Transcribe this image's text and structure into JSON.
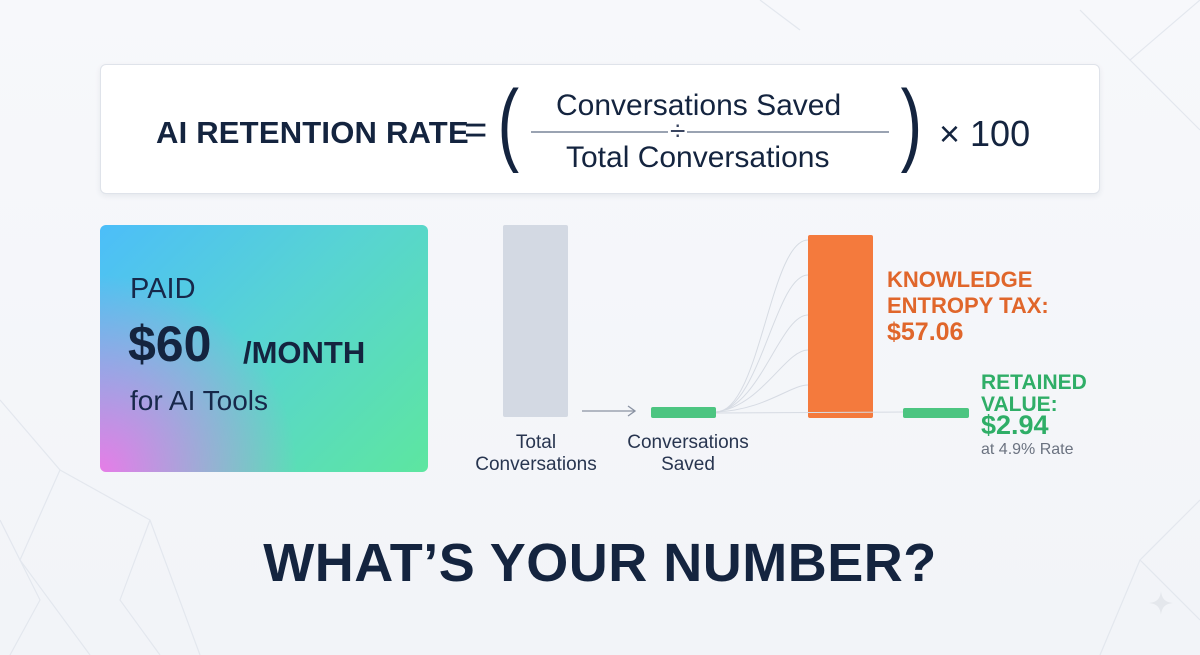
{
  "formula": {
    "label": "AI RETENTION RATE",
    "equals": "=",
    "open_paren": "(",
    "numerator": "Conversations Saved",
    "divide": "÷",
    "denominator": "Total Conversations",
    "close_paren": ")",
    "multiplier": "× 100"
  },
  "paid_card": {
    "line1": "PAID",
    "amount": "$60",
    "unit": "/MONTH",
    "line3": "for AI Tools"
  },
  "chart_data": {
    "type": "bar",
    "categories": [
      "Total Conversations",
      "Conversations Saved"
    ],
    "category_lines": [
      [
        "Total",
        "Conversations"
      ],
      [
        "Conversations",
        "Saved"
      ]
    ],
    "values": [
      1,
      0.049
    ],
    "split": [
      {
        "name_lines": [
          "KNOWLEDGE",
          "ENTROPY TAX:"
        ],
        "value_label": "$57.06",
        "value": 57.06,
        "color": "#f47a3d"
      },
      {
        "name_lines": [
          "RETAINED",
          "VALUE:"
        ],
        "value_label": "$2.94",
        "value": 2.94,
        "note": "at 4.9% Rate",
        "color": "#4cc581"
      }
    ],
    "colors": {
      "total": "#d3d9e3",
      "saved": "#4cc581"
    }
  },
  "headline": "WHAT’S YOUR NUMBER?",
  "icons": {
    "sparkle": "sparkle-icon"
  }
}
